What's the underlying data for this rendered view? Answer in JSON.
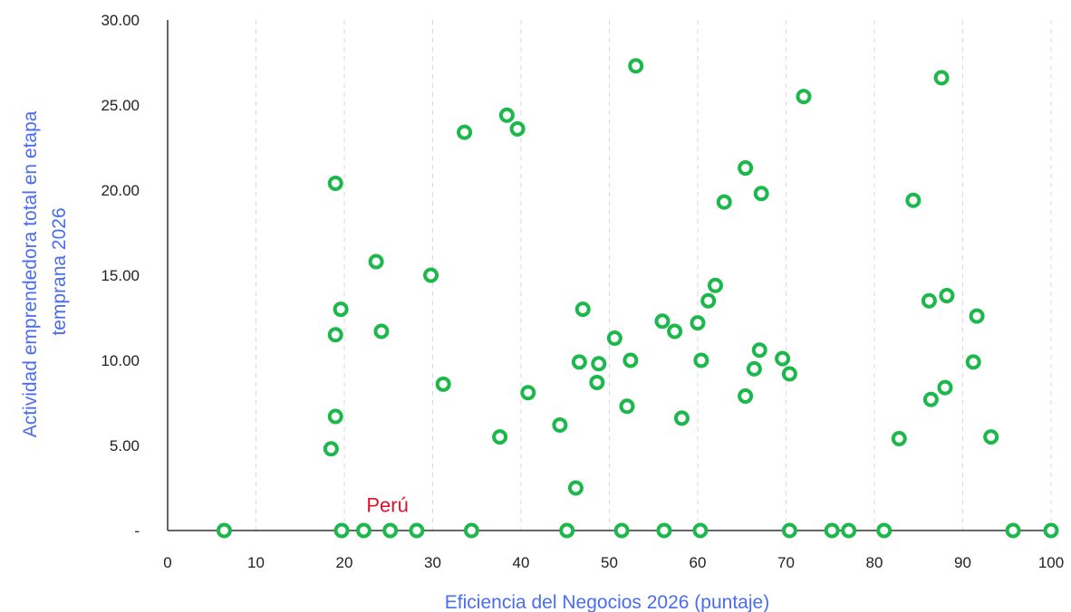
{
  "chart_data": {
    "type": "scatter",
    "title": "",
    "xlabel": "Eficiencia del Negocios 2026 (puntaje)",
    "ylabel": "Actividad emprendedora total en etapa temprana 2026",
    "ylabel_lines": [
      "Actividad emprendedora total en etapa",
      "temprana 2026"
    ],
    "xlim": [
      0,
      100
    ],
    "ylim": [
      0,
      30
    ],
    "x_ticks": [
      "0",
      "10",
      "20",
      "30",
      "40",
      "50",
      "60",
      "70",
      "80",
      "90",
      "100"
    ],
    "y_ticks": [
      "-",
      "5.00",
      "10.00",
      "15.00",
      "20.00",
      "25.00",
      "30.00"
    ],
    "x_grid": true,
    "y_grid": false,
    "marker_color": "#1cb84c",
    "annotations": [
      {
        "text": "Perú",
        "x": 22.5,
        "y": 1.1,
        "color": "#e0102b"
      }
    ],
    "points": [
      {
        "x": 6.4,
        "y": 0
      },
      {
        "x": 19.7,
        "y": 0
      },
      {
        "x": 22.2,
        "y": 0
      },
      {
        "x": 25.2,
        "y": 0
      },
      {
        "x": 28.2,
        "y": 0
      },
      {
        "x": 34.4,
        "y": 0
      },
      {
        "x": 45.2,
        "y": 0
      },
      {
        "x": 51.4,
        "y": 0
      },
      {
        "x": 56.2,
        "y": 0
      },
      {
        "x": 60.3,
        "y": 0
      },
      {
        "x": 70.4,
        "y": 0
      },
      {
        "x": 75.2,
        "y": 0
      },
      {
        "x": 77.1,
        "y": 0
      },
      {
        "x": 81.1,
        "y": 0
      },
      {
        "x": 95.7,
        "y": 0
      },
      {
        "x": 100,
        "y": 0
      },
      {
        "x": 18.5,
        "y": 4.8
      },
      {
        "x": 19.0,
        "y": 6.7
      },
      {
        "x": 19.0,
        "y": 11.5
      },
      {
        "x": 19.6,
        "y": 13.0
      },
      {
        "x": 19.0,
        "y": 20.4
      },
      {
        "x": 23.6,
        "y": 15.8
      },
      {
        "x": 24.2,
        "y": 11.7
      },
      {
        "x": 29.8,
        "y": 15.0
      },
      {
        "x": 31.2,
        "y": 8.6
      },
      {
        "x": 33.6,
        "y": 23.4
      },
      {
        "x": 37.6,
        "y": 5.5
      },
      {
        "x": 38.4,
        "y": 24.4
      },
      {
        "x": 39.6,
        "y": 23.6
      },
      {
        "x": 40.8,
        "y": 8.1
      },
      {
        "x": 44.4,
        "y": 6.2
      },
      {
        "x": 46.2,
        "y": 2.5
      },
      {
        "x": 46.6,
        "y": 9.9
      },
      {
        "x": 47.0,
        "y": 13.0
      },
      {
        "x": 48.6,
        "y": 8.7
      },
      {
        "x": 48.8,
        "y": 9.8
      },
      {
        "x": 50.6,
        "y": 11.3
      },
      {
        "x": 52.0,
        "y": 7.3
      },
      {
        "x": 52.4,
        "y": 10.0
      },
      {
        "x": 53.0,
        "y": 27.3
      },
      {
        "x": 56.0,
        "y": 12.3
      },
      {
        "x": 57.4,
        "y": 11.7
      },
      {
        "x": 58.2,
        "y": 6.6
      },
      {
        "x": 60.0,
        "y": 12.2
      },
      {
        "x": 60.4,
        "y": 10.0
      },
      {
        "x": 61.2,
        "y": 13.5
      },
      {
        "x": 62.0,
        "y": 14.4
      },
      {
        "x": 63.0,
        "y": 19.3
      },
      {
        "x": 65.4,
        "y": 7.9
      },
      {
        "x": 65.4,
        "y": 21.3
      },
      {
        "x": 66.4,
        "y": 9.5
      },
      {
        "x": 67.0,
        "y": 10.6
      },
      {
        "x": 67.2,
        "y": 19.8
      },
      {
        "x": 69.6,
        "y": 10.1
      },
      {
        "x": 70.4,
        "y": 9.2
      },
      {
        "x": 72.0,
        "y": 25.5
      },
      {
        "x": 82.8,
        "y": 5.4
      },
      {
        "x": 84.4,
        "y": 19.4
      },
      {
        "x": 86.2,
        "y": 13.5
      },
      {
        "x": 86.4,
        "y": 7.7
      },
      {
        "x": 87.6,
        "y": 26.6
      },
      {
        "x": 88.0,
        "y": 8.4
      },
      {
        "x": 88.2,
        "y": 13.8
      },
      {
        "x": 91.2,
        "y": 9.9
      },
      {
        "x": 91.6,
        "y": 12.6
      },
      {
        "x": 93.2,
        "y": 5.5
      }
    ]
  }
}
